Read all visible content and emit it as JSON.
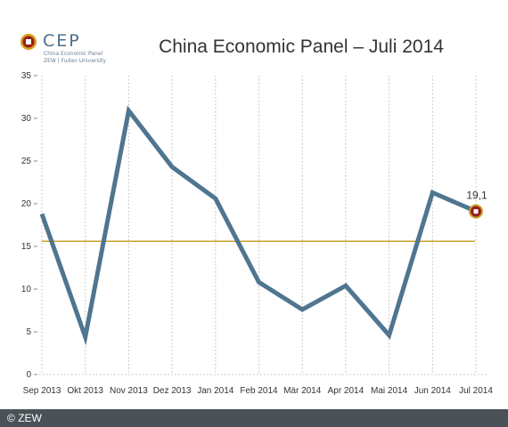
{
  "logo": {
    "brand": "CEP",
    "line1": "China Economic Panel",
    "line2": "ZEW | Fudan University"
  },
  "footer": {
    "copyright": "© ZEW"
  },
  "colors": {
    "line": "#4f7590",
    "reference": "#c9a227",
    "marker": "#9a1b1f",
    "grid": "#bbbbbb"
  },
  "chart_data": {
    "type": "line",
    "title": "China Economic Panel – Juli 2014",
    "categories": [
      "Sep 2013",
      "Okt 2013",
      "Nov 2013",
      "Dez 2013",
      "Jan 2014",
      "Feb 2014",
      "Mär 2014",
      "Apr 2014",
      "Mai 2014",
      "Jun 2014",
      "Jul 2014"
    ],
    "values": [
      18.8,
      4.4,
      30.9,
      24.3,
      20.6,
      10.8,
      7.6,
      10.4,
      4.6,
      21.3,
      19.1
    ],
    "reference_line": 15.6,
    "y_ticks": [
      "0",
      "5",
      "10",
      "15",
      "20",
      "25",
      "30",
      "35"
    ],
    "ylim": [
      0,
      35
    ],
    "data_labels": [
      {
        "index": 10,
        "text": "19,1"
      }
    ],
    "grid": "vertical dotted",
    "legend": "none"
  }
}
